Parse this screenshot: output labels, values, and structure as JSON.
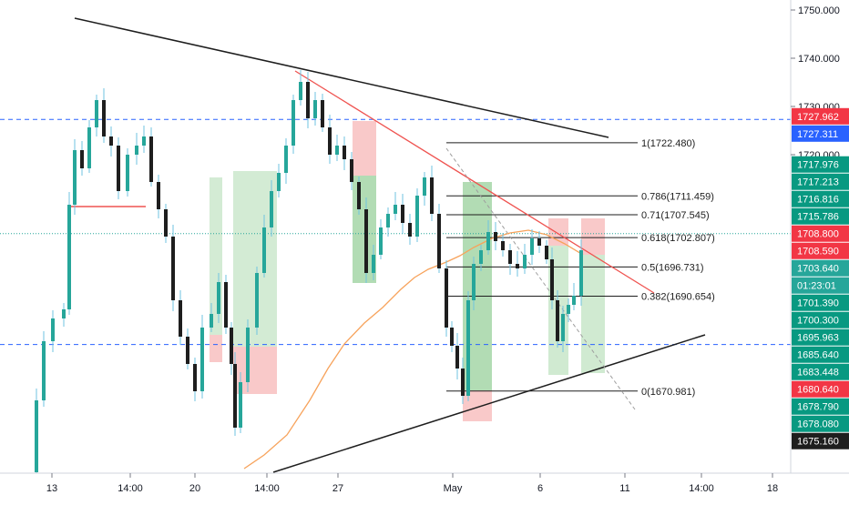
{
  "chart_data": {
    "type": "candlestick",
    "price_axis": {
      "ticks": [
        "1750.000",
        "1740.000",
        "1730.000",
        "1720.000"
      ],
      "badges": [
        {
          "label": "1727.962",
          "value": 1727.962,
          "color": "#f23645"
        },
        {
          "label": "1727.311",
          "value": 1727.311,
          "color": "#2962ff"
        },
        {
          "label": "1717.976",
          "value": 1717.976,
          "color": "#089981"
        },
        {
          "label": "1717.213",
          "value": 1717.213,
          "color": "#089981"
        },
        {
          "label": "1716.816",
          "value": 1716.816,
          "color": "#089981"
        },
        {
          "label": "1715.786",
          "value": 1715.786,
          "color": "#089981"
        },
        {
          "label": "1708.800",
          "value": 1708.8,
          "color": "#f23645"
        },
        {
          "label": "1708.590",
          "value": 1708.59,
          "color": "#f23645"
        },
        {
          "label": "1703.640",
          "value": 1703.64,
          "color": "#26a69a"
        },
        {
          "label": "01:23:01",
          "value": 1699.9,
          "color": "#26a69a"
        },
        {
          "label": "1701.390",
          "value": 1701.39,
          "color": "#089981"
        },
        {
          "label": "1700.300",
          "value": 1700.3,
          "color": "#089981"
        },
        {
          "label": "1695.963",
          "value": 1695.963,
          "color": "#089981"
        },
        {
          "label": "1685.640",
          "value": 1685.64,
          "color": "#089981"
        },
        {
          "label": "1683.448",
          "value": 1683.448,
          "color": "#089981"
        },
        {
          "label": "1680.640",
          "value": 1680.64,
          "color": "#f23645"
        },
        {
          "label": "1678.790",
          "value": 1678.79,
          "color": "#089981"
        },
        {
          "label": "1678.080",
          "value": 1678.08,
          "color": "#089981"
        },
        {
          "label": "1675.160",
          "value": 1675.16,
          "color": "#1e1e1e"
        }
      ]
    },
    "time_axis": {
      "labels": [
        "13",
        "14:00",
        "20",
        "14:00",
        "27",
        "May",
        "6",
        "11",
        "14:00",
        "18"
      ]
    },
    "fibonacci": [
      {
        "label": "1(1722.480)",
        "value": 1722.48
      },
      {
        "label": "0.786(1711.459)",
        "value": 1711.459
      },
      {
        "label": "0.71(1707.545)",
        "value": 1707.545
      },
      {
        "label": "0.618(1702.807)",
        "value": 1702.807
      },
      {
        "label": "0.5(1696.731)",
        "value": 1696.731
      },
      {
        "label": "0.382(1690.654)",
        "value": 1690.654
      },
      {
        "label": "0(1670.981)",
        "value": 1670.981
      }
    ],
    "horizontal_levels": [
      {
        "value": 1727.311,
        "style": "dashed",
        "color": "#2962ff"
      },
      {
        "value": 1680.64,
        "style": "dashed",
        "color": "#2962ff"
      },
      {
        "value": 1703.64,
        "style": "dotted",
        "color": "#26a69a"
      }
    ],
    "colors": {
      "up": "#26a69a",
      "down": "#1e1e1e",
      "wick": "#6fc3e0",
      "moving_average": "#f7a35c",
      "red_trendline": "#ef5350"
    }
  }
}
